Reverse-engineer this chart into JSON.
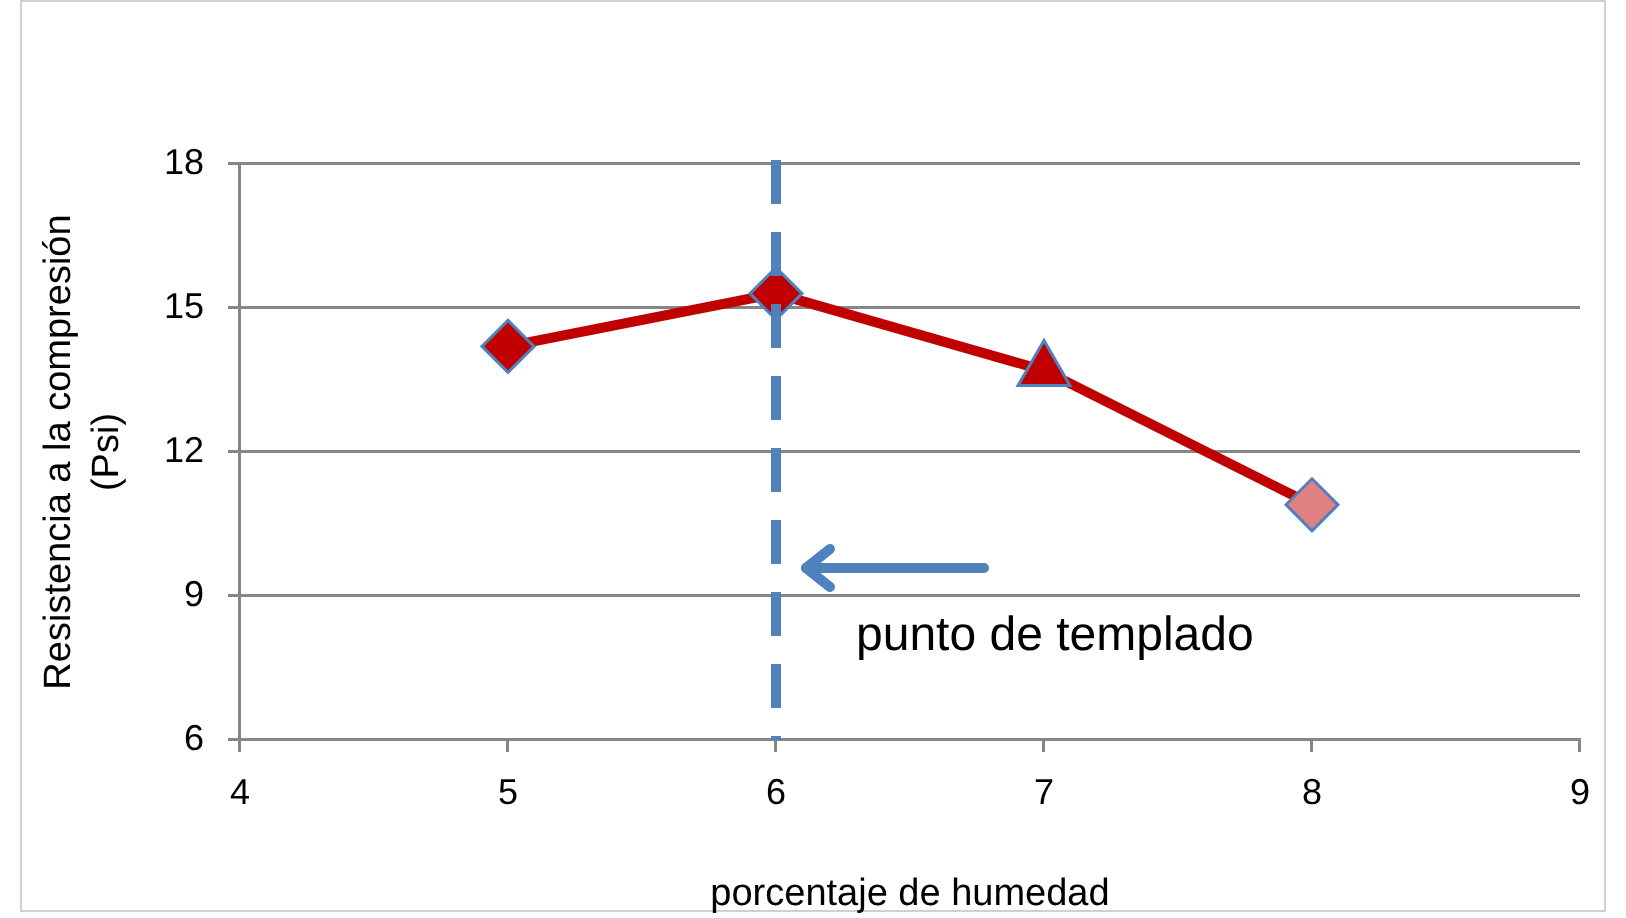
{
  "chart_data": {
    "type": "line",
    "x": [
      5,
      6,
      7,
      8
    ],
    "series": [
      {
        "color": "#c00000",
        "colors": [
          "#c00000",
          "#c00000",
          "#c00000",
          "#e08080"
        ],
        "marker": [
          "diamond",
          "diamond",
          "triangle",
          "diamond"
        ],
        "values": [
          14.2,
          15.3,
          13.7,
          10.9
        ]
      }
    ],
    "xlabel": "porcentaje de humedad",
    "ylabel": "Resistencia a la compresión (Psi)",
    "xlim": [
      4,
      9
    ],
    "xticks": [
      4,
      5,
      6,
      7,
      8,
      9
    ],
    "ylim": [
      6,
      18
    ],
    "yticks": [
      6,
      9,
      12,
      15,
      18
    ],
    "grid": "y",
    "legend": false,
    "line_style": "solid",
    "ref_lines": [
      {
        "axis": "x",
        "value": 6,
        "label": "punto de templado",
        "color": "#4f81bd",
        "line_style": "dashed"
      }
    ]
  }
}
